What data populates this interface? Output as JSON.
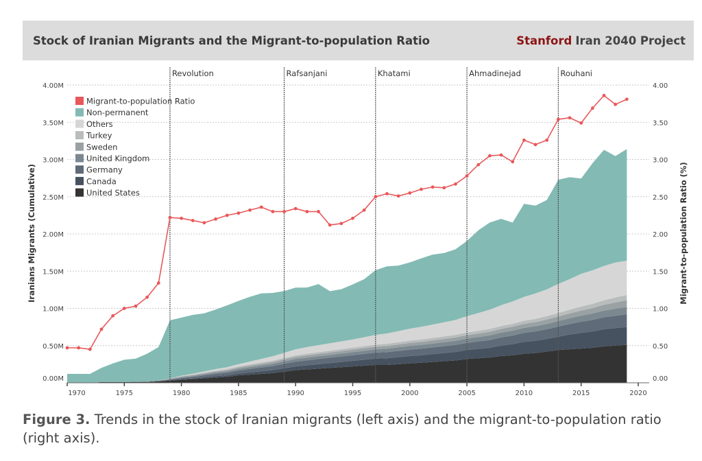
{
  "header": {
    "title": "Stock of Iranian Migrants and the Migrant-to-population  Ratio",
    "brand_strong": "Stanford",
    "brand_rest": "Iran 2040 Project",
    "brand_color": "#8c1515"
  },
  "caption": {
    "label": "Figure 3.",
    "text": "Trends in the stock of Iranian migrants (left axis) and the migrant-to-population ratio (right axis)."
  },
  "chart_data": {
    "type": "area",
    "title": "Stock of Iranian Migrants and the Migrant-to-population  Ratio",
    "ylabel": "Iranians Migrants (Cumulative)",
    "y2label": "Migrant-to-population Ratio (%)",
    "xlim": [
      1970,
      2020
    ],
    "ylim": [
      0,
      4
    ],
    "y2lim": [
      0,
      4
    ],
    "x_ticks": [
      "1970",
      "1975",
      "1980",
      "1985",
      "1990",
      "1995",
      "2000",
      "2005",
      "2010",
      "2015",
      "2020"
    ],
    "y_ticks": [
      "0.00M",
      "0.50M",
      "1.00M",
      "1.50M",
      "2.00M",
      "2.50M",
      "3.00M",
      "3.50M",
      "4.00M"
    ],
    "y2_ticks": [
      "0.00",
      "0.50",
      "1.00",
      "1.50",
      "2.00",
      "2.50",
      "3.00",
      "3.50",
      "4.00"
    ],
    "grid": true,
    "legend_position": "top-left",
    "events": [
      {
        "label": "Revolution",
        "year": 1979
      },
      {
        "label": "Rafsanjani",
        "year": 1989
      },
      {
        "label": "Khatami",
        "year": 1997
      },
      {
        "label": "Ahmadinejad",
        "year": 2005
      },
      {
        "label": "Rouhani",
        "year": 2013
      }
    ],
    "x": [
      1970,
      1971,
      1972,
      1973,
      1974,
      1975,
      1976,
      1977,
      1978,
      1979,
      1980,
      1981,
      1982,
      1983,
      1984,
      1985,
      1986,
      1987,
      1988,
      1989,
      1990,
      1991,
      1992,
      1993,
      1994,
      1995,
      1996,
      1997,
      1998,
      1999,
      2000,
      2001,
      2002,
      2003,
      2004,
      2005,
      2006,
      2007,
      2008,
      2009,
      2010,
      2011,
      2012,
      2013,
      2014,
      2015,
      2016,
      2017,
      2018,
      2019
    ],
    "stack_series": [
      {
        "name": "United States",
        "color": "#333333",
        "values": [
          0,
          0,
          0,
          0.01,
          0.01,
          0.01,
          0.01,
          0.01,
          0.02,
          0.03,
          0.04,
          0.05,
          0.06,
          0.07,
          0.08,
          0.1,
          0.11,
          0.12,
          0.13,
          0.15,
          0.17,
          0.18,
          0.19,
          0.2,
          0.21,
          0.22,
          0.23,
          0.24,
          0.24,
          0.25,
          0.26,
          0.27,
          0.28,
          0.29,
          0.3,
          0.32,
          0.33,
          0.34,
          0.36,
          0.37,
          0.39,
          0.4,
          0.42,
          0.44,
          0.45,
          0.46,
          0.47,
          0.49,
          0.5,
          0.51
        ]
      },
      {
        "name": "Canada",
        "color": "#465260",
        "values": [
          0,
          0,
          0,
          0,
          0,
          0,
          0,
          0,
          0,
          0.005,
          0.01,
          0.01,
          0.015,
          0.02,
          0.02,
          0.025,
          0.03,
          0.035,
          0.04,
          0.045,
          0.05,
          0.055,
          0.06,
          0.065,
          0.07,
          0.075,
          0.08,
          0.085,
          0.09,
          0.095,
          0.1,
          0.1,
          0.105,
          0.11,
          0.115,
          0.12,
          0.125,
          0.13,
          0.14,
          0.15,
          0.16,
          0.165,
          0.17,
          0.18,
          0.2,
          0.21,
          0.22,
          0.23,
          0.235,
          0.24
        ]
      },
      {
        "name": "Germany",
        "color": "#5f6b78",
        "values": [
          0,
          0,
          0,
          0,
          0,
          0,
          0.005,
          0.005,
          0.005,
          0.01,
          0.015,
          0.02,
          0.025,
          0.03,
          0.035,
          0.04,
          0.045,
          0.05,
          0.055,
          0.06,
          0.065,
          0.067,
          0.07,
          0.072,
          0.074,
          0.076,
          0.078,
          0.08,
          0.082,
          0.084,
          0.086,
          0.088,
          0.09,
          0.092,
          0.094,
          0.096,
          0.1,
          0.105,
          0.11,
          0.115,
          0.12,
          0.125,
          0.13,
          0.135,
          0.14,
          0.15,
          0.155,
          0.16,
          0.165,
          0.17
        ]
      },
      {
        "name": "United Kingdom",
        "color": "#7b8890",
        "values": [
          0,
          0,
          0,
          0,
          0,
          0,
          0,
          0.005,
          0.005,
          0.005,
          0.01,
          0.012,
          0.015,
          0.018,
          0.02,
          0.022,
          0.025,
          0.028,
          0.03,
          0.032,
          0.035,
          0.036,
          0.037,
          0.038,
          0.04,
          0.041,
          0.042,
          0.044,
          0.046,
          0.048,
          0.05,
          0.051,
          0.052,
          0.054,
          0.056,
          0.058,
          0.06,
          0.062,
          0.064,
          0.066,
          0.068,
          0.07,
          0.072,
          0.075,
          0.078,
          0.082,
          0.086,
          0.09,
          0.095,
          0.1
        ]
      },
      {
        "name": "Sweden",
        "color": "#9aa1a3",
        "values": [
          0,
          0,
          0,
          0,
          0,
          0,
          0,
          0,
          0,
          0.005,
          0.008,
          0.01,
          0.012,
          0.014,
          0.016,
          0.018,
          0.02,
          0.022,
          0.024,
          0.026,
          0.028,
          0.03,
          0.031,
          0.032,
          0.033,
          0.034,
          0.035,
          0.036,
          0.037,
          0.038,
          0.04,
          0.041,
          0.042,
          0.043,
          0.044,
          0.045,
          0.046,
          0.048,
          0.05,
          0.052,
          0.054,
          0.056,
          0.058,
          0.06,
          0.064,
          0.068,
          0.072,
          0.078,
          0.085,
          0.09
        ]
      },
      {
        "name": "Turkey",
        "color": "#b9bcbd",
        "values": [
          0,
          0,
          0,
          0,
          0,
          0,
          0,
          0,
          0,
          0.005,
          0.008,
          0.01,
          0.011,
          0.012,
          0.014,
          0.015,
          0.016,
          0.017,
          0.018,
          0.02,
          0.021,
          0.022,
          0.023,
          0.024,
          0.025,
          0.026,
          0.027,
          0.028,
          0.029,
          0.03,
          0.031,
          0.032,
          0.033,
          0.034,
          0.035,
          0.036,
          0.037,
          0.038,
          0.039,
          0.04,
          0.042,
          0.044,
          0.046,
          0.048,
          0.051,
          0.054,
          0.058,
          0.062,
          0.066,
          0.07
        ]
      },
      {
        "name": "Others",
        "color": "#d6d6d6",
        "values": [
          0,
          0,
          0,
          0,
          0,
          0,
          0,
          0,
          0,
          0,
          0.005,
          0.01,
          0.015,
          0.02,
          0.025,
          0.03,
          0.04,
          0.05,
          0.06,
          0.07,
          0.08,
          0.09,
          0.095,
          0.1,
          0.105,
          0.11,
          0.12,
          0.13,
          0.14,
          0.15,
          0.16,
          0.17,
          0.18,
          0.19,
          0.2,
          0.22,
          0.24,
          0.26,
          0.28,
          0.3,
          0.32,
          0.34,
          0.36,
          0.39,
          0.41,
          0.44,
          0.45,
          0.46,
          0.47,
          0.46
        ]
      },
      {
        "name": "Non-permanent",
        "color": "#83bab4",
        "values": [
          0.12,
          0.12,
          0.12,
          0.19,
          0.25,
          0.3,
          0.31,
          0.37,
          0.45,
          0.78,
          0.78,
          0.79,
          0.78,
          0.8,
          0.83,
          0.85,
          0.87,
          0.88,
          0.85,
          0.83,
          0.83,
          0.8,
          0.82,
          0.7,
          0.7,
          0.74,
          0.78,
          0.87,
          0.9,
          0.88,
          0.89,
          0.92,
          0.94,
          0.93,
          0.95,
          1.01,
          1.11,
          1.17,
          1.16,
          1.06,
          1.25,
          1.18,
          1.2,
          1.4,
          1.37,
          1.28,
          1.44,
          1.56,
          1.43,
          1.5
        ]
      }
    ],
    "line_series": {
      "name": "Migrant-to-population Ratio",
      "color": "#e8585a",
      "axis": "right",
      "values": [
        0.47,
        0.47,
        0.45,
        0.72,
        0.9,
        1.0,
        1.03,
        1.15,
        1.34,
        2.22,
        2.21,
        2.18,
        2.15,
        2.2,
        2.25,
        2.28,
        2.32,
        2.36,
        2.3,
        2.3,
        2.34,
        2.3,
        2.3,
        2.12,
        2.14,
        2.21,
        2.32,
        2.5,
        2.54,
        2.51,
        2.55,
        2.6,
        2.63,
        2.62,
        2.67,
        2.78,
        2.93,
        3.05,
        3.06,
        2.97,
        3.26,
        3.2,
        3.26,
        3.54,
        3.56,
        3.49,
        3.69,
        3.86,
        3.74,
        3.81
      ]
    },
    "legend": [
      "Migrant-to-population Ratio",
      "Non-permanent",
      "Others",
      "Turkey",
      "Sweden",
      "United Kingdom",
      "Germany",
      "Canada",
      "United States"
    ]
  }
}
